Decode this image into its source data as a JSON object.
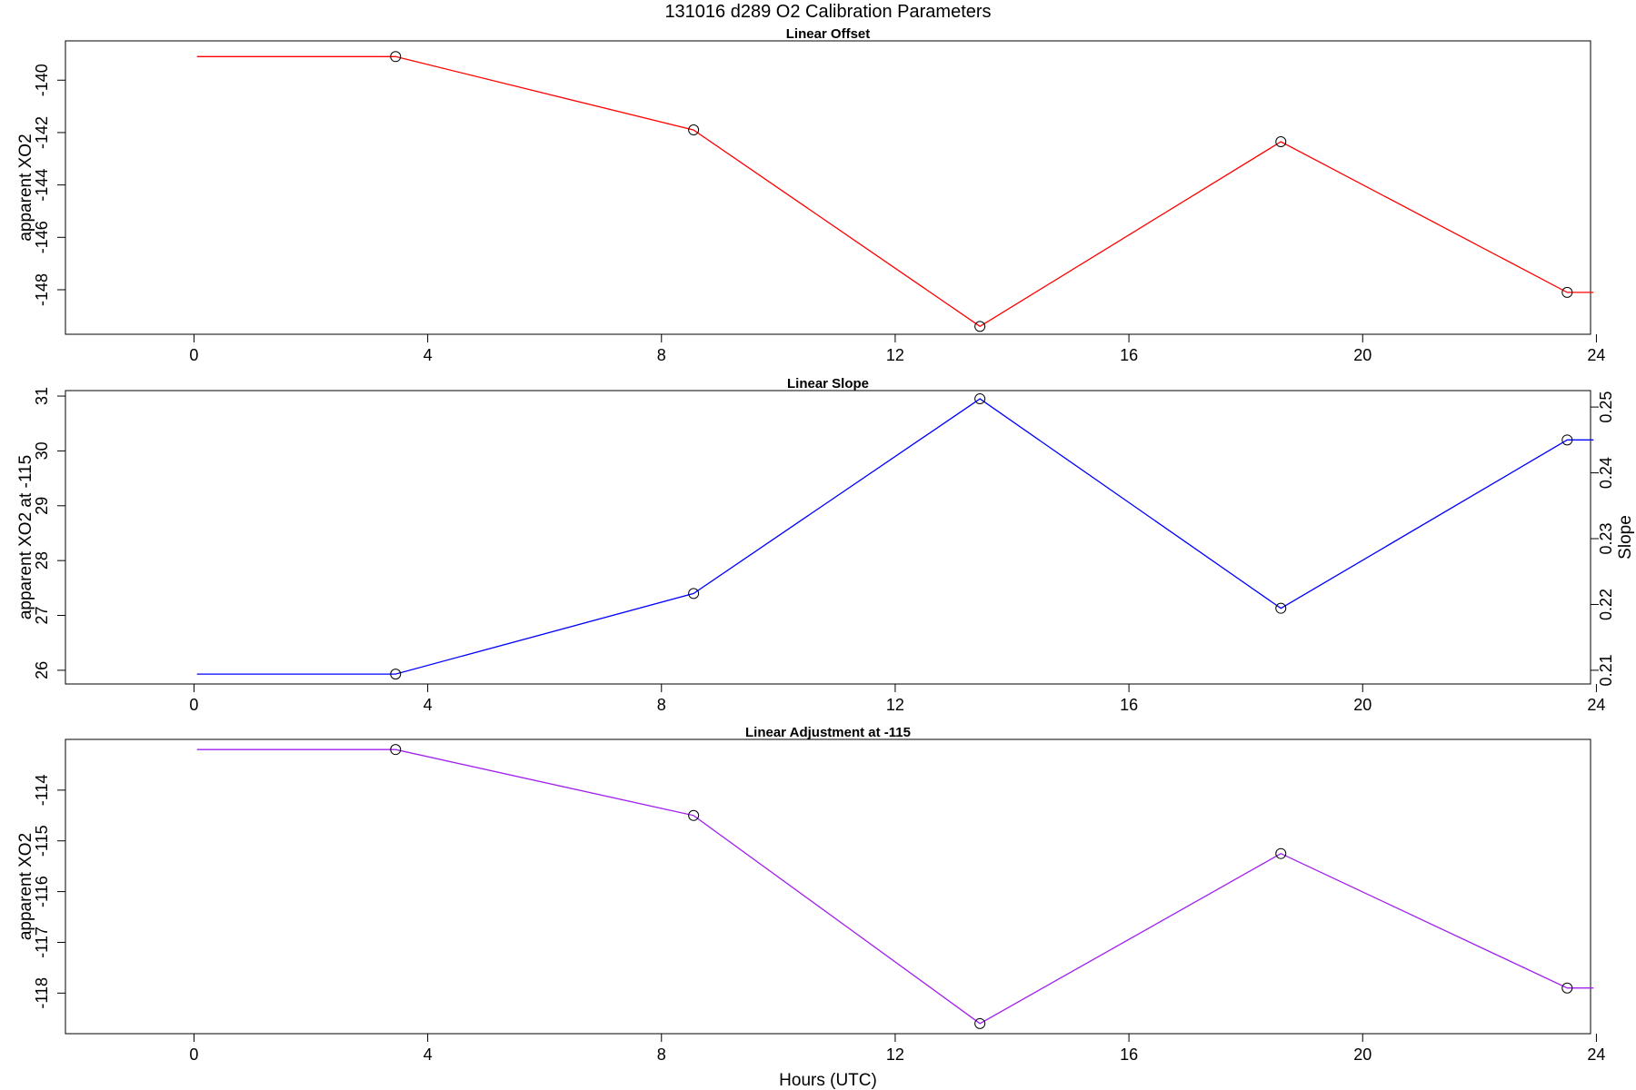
{
  "figure": {
    "title": "131016   d289   O2 Calibration Parameters",
    "xlabel": "Hours (UTC)"
  },
  "chart_data": [
    {
      "type": "line",
      "title": "Linear Offset",
      "xlabel": "",
      "ylabel": "apparent XO2",
      "color": "#ff0000",
      "xlim": [
        -2.2,
        23.9
      ],
      "ylim": [
        -149.7,
        -138.5
      ],
      "xticks": [
        0,
        4,
        8,
        12,
        16,
        20,
        24
      ],
      "yticks": [
        -148,
        -146,
        -144,
        -142,
        -140
      ],
      "grid": false,
      "x": [
        0.05,
        3.45,
        8.55,
        13.45,
        18.6,
        23.5,
        23.95
      ],
      "y": [
        -139.1,
        -139.1,
        -141.9,
        -149.4,
        -142.35,
        -148.1,
        -148.1
      ],
      "markers": [
        false,
        true,
        true,
        true,
        true,
        true,
        false
      ]
    },
    {
      "type": "line",
      "title": "Linear Slope",
      "xlabel": "",
      "ylabel": "apparent XO2 at -115",
      "ylabel_right": "Slope",
      "color": "#0000ff",
      "xlim": [
        -2.2,
        23.9
      ],
      "ylim": [
        25.75,
        31.1
      ],
      "xticks": [
        0,
        4,
        8,
        12,
        16,
        20,
        24
      ],
      "yticks": [
        26,
        27,
        28,
        29,
        30,
        31
      ],
      "right_axis": {
        "label": "Slope",
        "ticks": [
          0.21,
          0.22,
          0.23,
          0.24,
          0.25
        ],
        "tick_labels": [
          "0.21",
          "0.22",
          "0.23",
          "0.24",
          "0.25"
        ],
        "positions_in_left_units": [
          26.0,
          27.2,
          28.4,
          29.6,
          30.8
        ]
      },
      "grid": false,
      "x": [
        0.05,
        3.45,
        8.55,
        13.45,
        18.6,
        23.5,
        23.95
      ],
      "y": [
        25.93,
        25.93,
        27.4,
        30.95,
        27.13,
        30.2,
        30.2
      ],
      "markers": [
        false,
        true,
        true,
        true,
        true,
        true,
        false
      ]
    },
    {
      "type": "line",
      "title": "Linear Adjustment at -115",
      "xlabel": "Hours (UTC)",
      "ylabel": "apparent XO2",
      "color": "#a020f0",
      "xlim": [
        -2.2,
        23.9
      ],
      "ylim": [
        -118.8,
        -113.0
      ],
      "xticks": [
        0,
        4,
        8,
        12,
        16,
        20,
        24
      ],
      "yticks": [
        -118,
        -117,
        -116,
        -115,
        -114
      ],
      "grid": false,
      "x": [
        0.05,
        3.45,
        8.55,
        13.45,
        18.6,
        23.5,
        23.95
      ],
      "y": [
        -113.2,
        -113.2,
        -114.5,
        -118.6,
        -115.25,
        -117.9,
        -117.9
      ],
      "markers": [
        false,
        true,
        true,
        true,
        true,
        true,
        false
      ]
    }
  ]
}
